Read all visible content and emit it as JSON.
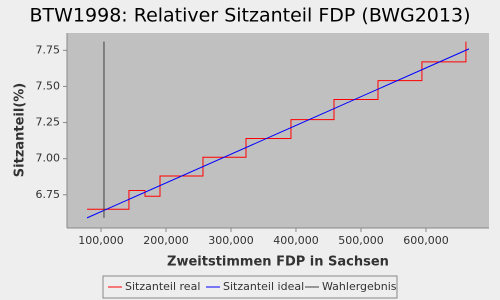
{
  "chart_data": {
    "type": "line",
    "title": "BTW1998: Relativer Sitzanteil FDP (BWG2013)",
    "x_label": "Zweitstimmen FDP in Sachsen",
    "y_label": "Sitzanteil(%)",
    "xlim": [
      47700,
      697000
    ],
    "ylim": [
      6.52,
      7.87
    ],
    "xticks": [
      {
        "value": 100000,
        "label": "100,000"
      },
      {
        "value": 200000,
        "label": "200,000"
      },
      {
        "value": 300000,
        "label": "300,000"
      },
      {
        "value": 400000,
        "label": "400,000"
      },
      {
        "value": 500000,
        "label": "500,000"
      },
      {
        "value": 600000,
        "label": "600,000"
      }
    ],
    "yticks": [
      6.75,
      {
        "value": 7,
        "label": "7.00"
      },
      7.25,
      {
        "value": 7.5,
        "label": "7.50"
      },
      7.75
    ],
    "grid": false,
    "legend": "bottom",
    "series": [
      {
        "name": "Sitzanteil real",
        "color": "#ff0000",
        "x": [
          78500,
          143000,
          143000,
          167700,
          167700,
          190800,
          190800,
          256900,
          256900,
          323100,
          323100,
          392300,
          392300,
          458500,
          458500,
          526200,
          526200,
          593800,
          593800,
          661500,
          661500
        ],
        "values": [
          6.65,
          6.65,
          6.78,
          6.78,
          6.74,
          6.74,
          6.88,
          6.88,
          7.01,
          7.01,
          7.14,
          7.14,
          7.27,
          7.27,
          7.41,
          7.41,
          7.54,
          7.54,
          7.67,
          7.67,
          7.81
        ]
      },
      {
        "name": "Sitzanteil ideal",
        "color": "#0000ff",
        "x": [
          78500,
          666200
        ],
        "values": [
          6.59,
          7.76
        ]
      },
      {
        "name": "Wahlergebnis",
        "color": "#404040",
        "x": [
          104600,
          104600
        ],
        "values": [
          6.59,
          7.81
        ]
      }
    ]
  }
}
